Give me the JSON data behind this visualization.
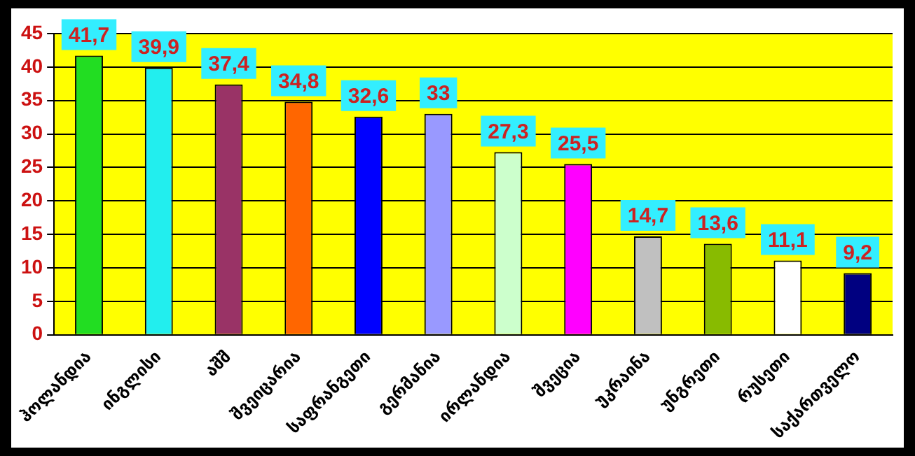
{
  "chart_data": {
    "type": "bar",
    "categories": [
      "ჰოლანდია",
      "ინგლისი",
      "აშშ",
      "შვეიცარია",
      "საფრანგეთი",
      "გერმანია",
      "ირლანდია",
      "შვეცია",
      "უკრაინა",
      "უნგრეთი",
      "რუსეთი",
      "საქართველო"
    ],
    "values": [
      41.7,
      39.9,
      37.4,
      34.8,
      32.6,
      33,
      27.3,
      25.5,
      14.7,
      13.6,
      11.1,
      9.2
    ],
    "colors": [
      "#22dd22",
      "#22eeee",
      "#993366",
      "#ff6600",
      "#0000ff",
      "#9999ff",
      "#ccffcc",
      "#ff00ff",
      "#c0c0c0",
      "#88bb00",
      "#ffffff",
      "#000080"
    ],
    "value_labels": [
      "41,7",
      "39,9",
      "37,4",
      "34,8",
      "32,6",
      "33",
      "27,3",
      "25,5",
      "14,7",
      "13,6",
      "11,1",
      "9,2"
    ],
    "ylim": [
      0,
      45
    ],
    "yticks": [
      0,
      5,
      10,
      15,
      20,
      25,
      30,
      35,
      40,
      45
    ],
    "grid": "y"
  }
}
